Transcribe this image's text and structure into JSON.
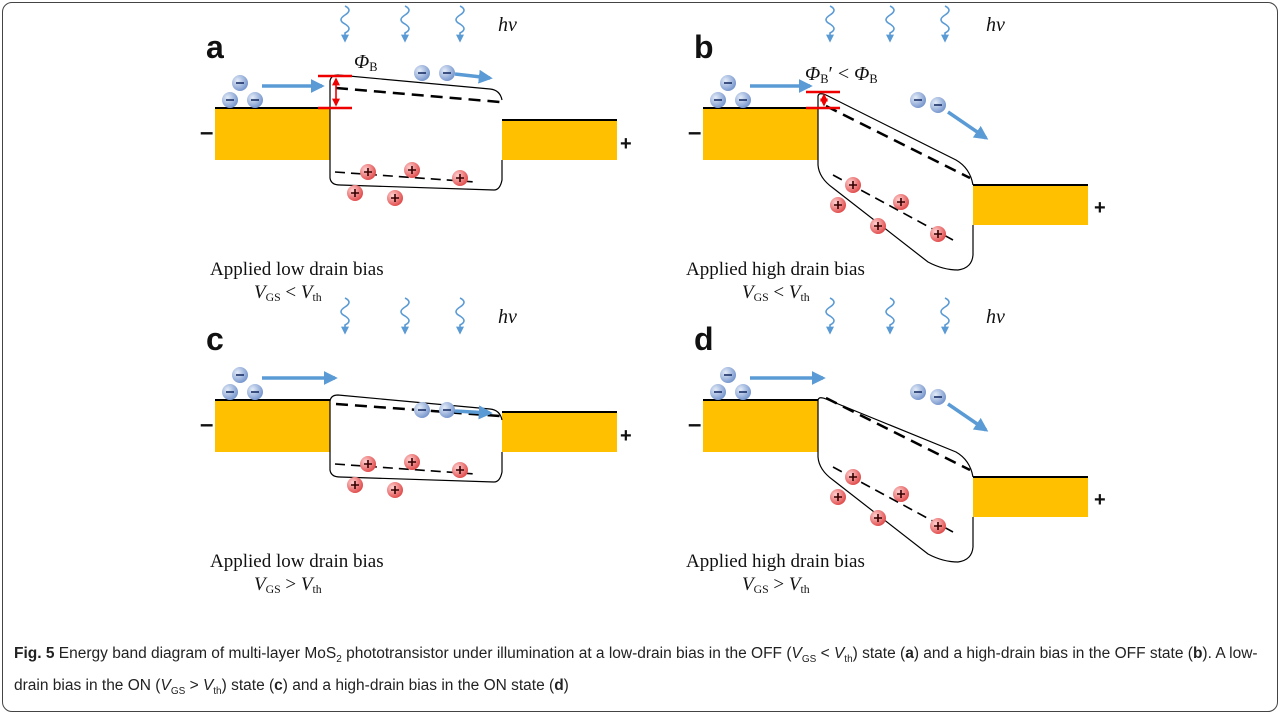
{
  "panels": [
    {
      "label": "a",
      "light": "hv",
      "left_sign": "–",
      "right_sign": "+",
      "barrier": [
        {
          "text": "Φ",
          "style": "italic"
        },
        {
          "text": "B",
          "style": "sub"
        }
      ],
      "bias": "Applied low drain bias",
      "condition": [
        {
          "text": "V",
          "style": "italic"
        },
        {
          "text": "GS",
          "style": "sub"
        },
        {
          "text": " < "
        },
        {
          "text": "V",
          "style": "italic"
        },
        {
          "text": "th",
          "style": "sub"
        }
      ]
    },
    {
      "label": "b",
      "light": "hv",
      "left_sign": "–",
      "right_sign": "+",
      "barrier": [
        {
          "text": "Φ",
          "style": "italic"
        },
        {
          "text": "B",
          "style": "sub"
        },
        {
          "text": "′ < "
        },
        {
          "text": "Φ",
          "style": "italic"
        },
        {
          "text": "B",
          "style": "sub"
        }
      ],
      "bias": "Applied high drain bias",
      "condition": [
        {
          "text": "V",
          "style": "italic"
        },
        {
          "text": "GS",
          "style": "sub"
        },
        {
          "text": " < "
        },
        {
          "text": "V",
          "style": "italic"
        },
        {
          "text": "th",
          "style": "sub"
        }
      ]
    },
    {
      "label": "c",
      "light": "hv",
      "left_sign": "–",
      "right_sign": "+",
      "bias": "Applied low drain bias",
      "condition": [
        {
          "text": "V",
          "style": "italic"
        },
        {
          "text": "GS",
          "style": "sub"
        },
        {
          "text": " > "
        },
        {
          "text": "V",
          "style": "italic"
        },
        {
          "text": "th",
          "style": "sub"
        }
      ]
    },
    {
      "label": "d",
      "light": "hv",
      "left_sign": "–",
      "right_sign": "+",
      "bias": "Applied high drain bias",
      "condition": [
        {
          "text": "V",
          "style": "italic"
        },
        {
          "text": "GS",
          "style": "sub"
        },
        {
          "text": " > "
        },
        {
          "text": "V",
          "style": "italic"
        },
        {
          "text": "th",
          "style": "sub"
        }
      ]
    }
  ],
  "caption": [
    {
      "text": "Fig. 5",
      "style": "bold"
    },
    {
      "text": " Energy band diagram of multi-layer MoS"
    },
    {
      "text": "2",
      "style": "sub"
    },
    {
      "text": " phototransistor under illumination at a low-drain bias in the OFF ("
    },
    {
      "text": "V",
      "style": "italic"
    },
    {
      "text": "GS",
      "style": "sub"
    },
    {
      "text": " < "
    },
    {
      "text": "V",
      "style": "italic"
    },
    {
      "text": "th",
      "style": "sub"
    },
    {
      "text": ") state ("
    },
    {
      "text": "a",
      "style": "bold"
    },
    {
      "text": ") and a high-drain bias in the OFF state ("
    },
    {
      "text": "b",
      "style": "bold"
    },
    {
      "text": "). A low-drain bias in the ON ("
    },
    {
      "text": "V",
      "style": "italic"
    },
    {
      "text": "GS",
      "style": "sub"
    },
    {
      "text": " > "
    },
    {
      "text": "V",
      "style": "italic"
    },
    {
      "text": "th",
      "style": "sub"
    },
    {
      "text": ") state ("
    },
    {
      "text": "c",
      "style": "bold"
    },
    {
      "text": ") and a high-drain bias in the ON state ("
    },
    {
      "text": "d",
      "style": "bold"
    },
    {
      "text": ")"
    }
  ]
}
